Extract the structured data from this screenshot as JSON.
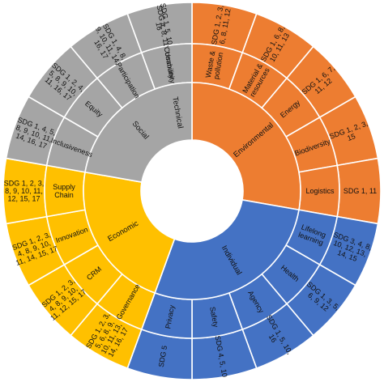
{
  "colors": {
    "Technical": "#5b9bd5",
    "Environmental": "#ed7d31",
    "Individual": "#4472c4",
    "Economic": "#ffc000",
    "Social": "#a5a5a5",
    "border": "#ffffff"
  },
  "categories": [
    {
      "name": "Technical",
      "subs": [
        {
          "name": "Usability",
          "sdg": "SDG 4, 8, 11"
        }
      ]
    },
    {
      "name": "Environmental",
      "subs": [
        {
          "name": "Waste & pollution",
          "sdg": "SDG 1, 2, 3, 6, 8, 11, 12"
        },
        {
          "name": "Material & resources",
          "sdg": "SDG 1, 6, 8, 10, 11, 13"
        },
        {
          "name": "Energy",
          "sdg": "SDG 1, 6, 7, 11, 12"
        },
        {
          "name": "Biodiversity",
          "sdg": "SDG 1, 2, 3, 15"
        },
        {
          "name": "Logistics",
          "sdg": "SDG 1, 11"
        }
      ]
    },
    {
      "name": "Individual",
      "subs": [
        {
          "name": "Lifelong learning",
          "sdg": "SDG 3, 4, 8, 10, 12, 13, 14, 15"
        },
        {
          "name": "Health",
          "sdg": "SDG 1, 3, 5, 6, 9, 12"
        },
        {
          "name": "Agency",
          "sdg": "SDG 1, 5, 10, 16"
        },
        {
          "name": "Safety",
          "sdg": "SDG 4, 5, 10"
        },
        {
          "name": "Privacy",
          "sdg": "SDG 5"
        }
      ]
    },
    {
      "name": "Economic",
      "subs": [
        {
          "name": "Governance",
          "sdg": "SDG 1, 2, 3, 5, 6, 8, 9, 10, 11, 13, 14, 16, 17"
        },
        {
          "name": "CRM",
          "sdg": "SDG 1, 2, 3, 4, 8, 9, 10, 11, 12, 15, 17"
        },
        {
          "name": "Innovation",
          "sdg": "SDG 1, 2, 3, 4, 8, 9, 10, 11, 14, 15, 17"
        },
        {
          "name": "Supply Chain",
          "sdg": "SDG 1, 2, 3, 8, 9, 10, 11, 12, 15, 17"
        }
      ]
    },
    {
      "name": "Social",
      "subs": [
        {
          "name": "Inclusiveness",
          "sdg": "SDG 1, 4, 5, 8, 9, 10, 11, 14, 16, 17"
        },
        {
          "name": "Equity",
          "sdg": "SDG 1, 2, 4, 5, 8, 9, 10, 11, 16, 17"
        },
        {
          "name": "Participation",
          "sdg": "SDG 1, 4, 8, 9, 10, 11, 14, 16, 17"
        },
        {
          "name": "Community",
          "sdg": "SDG 1, 5, 10, 16"
        }
      ]
    }
  ]
}
